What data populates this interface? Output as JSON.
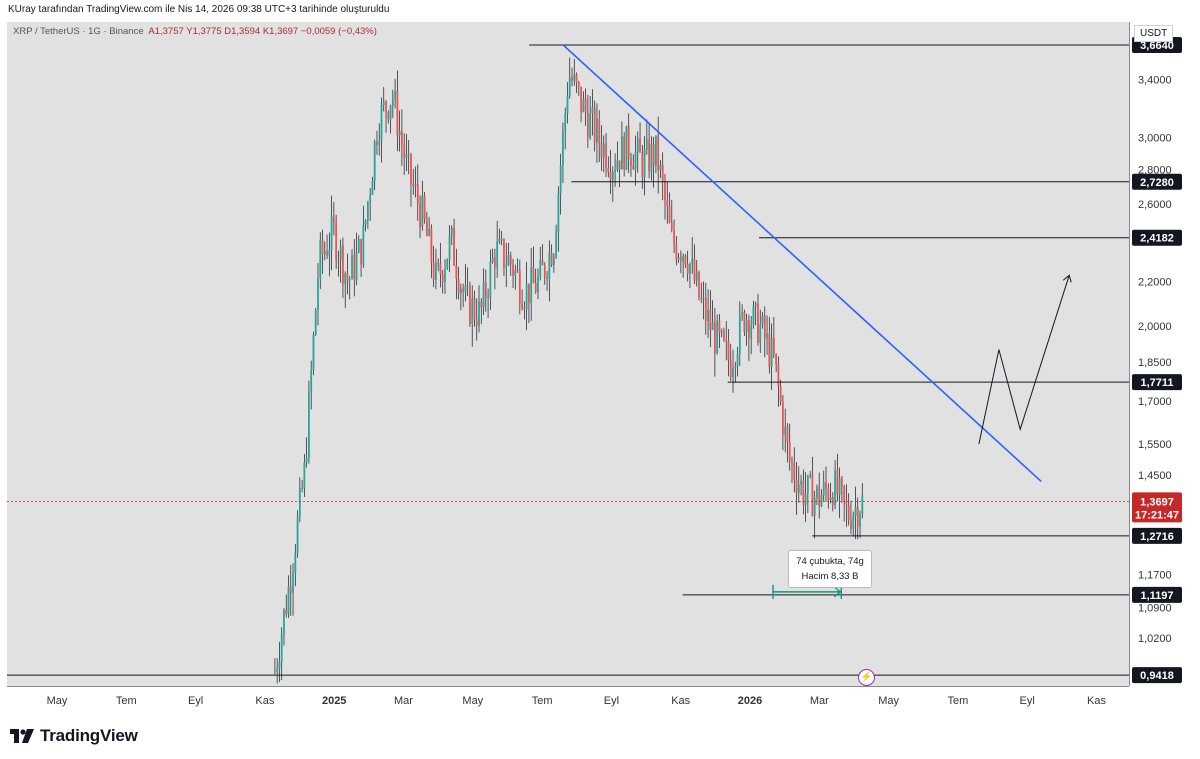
{
  "header": {
    "text": "KUray tarafından TradingView.com ile Nis 14, 2026 09:38 UTC+3 tarihinde oluşturuldu"
  },
  "symbol": {
    "name": "XRP / TetherUS · 1G · Binance",
    "ohlc": "A1,3757  Y1,3775  D1,3594  K1,3697  −0,0059 (−0,43%)"
  },
  "currency": "USDT",
  "logo": {
    "text": "TradingView"
  },
  "tooltip": {
    "line1": "74 çubukta, 74g",
    "line2": "Hacim 8,33 B"
  },
  "alert_icon": "lightning-icon",
  "colors": {
    "up": "#26a69a",
    "down": "#ef5350",
    "trendline": "#2962ff",
    "level_box": "#131722",
    "last_price": "#c62828",
    "measure": "#089981"
  },
  "chart_data": {
    "type": "candlestick",
    "y_scale": "log",
    "ylim": [
      0.92,
      3.85
    ],
    "y_ticks": [
      {
        "value": 3.4,
        "label": "3,4000"
      },
      {
        "value": 3.0,
        "label": "3,0000"
      },
      {
        "value": 2.8,
        "label": "2,8000"
      },
      {
        "value": 2.6,
        "label": "2,6000"
      },
      {
        "value": 2.2,
        "label": "2,2000"
      },
      {
        "value": 2.0,
        "label": "2,0000"
      },
      {
        "value": 1.85,
        "label": "1,8500"
      },
      {
        "value": 1.7,
        "label": "1,7000"
      },
      {
        "value": 1.55,
        "label": "1,5500"
      },
      {
        "value": 1.45,
        "label": "1,4500"
      },
      {
        "value": 1.17,
        "label": "1,1700"
      },
      {
        "value": 1.09,
        "label": "1,0900"
      },
      {
        "value": 1.02,
        "label": "1,0200"
      }
    ],
    "x_ticks": [
      {
        "label": "May",
        "bold": false
      },
      {
        "label": "Tem",
        "bold": false
      },
      {
        "label": "Eyl",
        "bold": false
      },
      {
        "label": "Kas",
        "bold": false
      },
      {
        "label": "2025",
        "bold": true
      },
      {
        "label": "Mar",
        "bold": false
      },
      {
        "label": "May",
        "bold": false
      },
      {
        "label": "Tem",
        "bold": false
      },
      {
        "label": "Eyl",
        "bold": false
      },
      {
        "label": "Kas",
        "bold": false
      },
      {
        "label": "2026",
        "bold": true
      },
      {
        "label": "Mar",
        "bold": false
      },
      {
        "label": "May",
        "bold": false
      },
      {
        "label": "Tem",
        "bold": false
      },
      {
        "label": "Eyl",
        "bold": false
      },
      {
        "label": "Kas",
        "bold": false
      }
    ],
    "levels": [
      {
        "value": 3.664,
        "label": "3,6640"
      },
      {
        "value": 2.728,
        "label": "2,7280"
      },
      {
        "value": 2.4182,
        "label": "2,4182"
      },
      {
        "value": 1.7711,
        "label": "1,7711"
      },
      {
        "value": 1.2716,
        "label": "1,2716"
      },
      {
        "value": 1.1197,
        "label": "1,1197"
      },
      {
        "value": 0.9418,
        "label": "0,9418"
      }
    ],
    "last_price": {
      "value": 1.3697,
      "label": "1,3697",
      "countdown": "17:21:47"
    },
    "price_path": [
      [
        "Kas 2024",
        0.95
      ],
      [
        "Kas 2024",
        1.15
      ],
      [
        "Kas 2024",
        1.45
      ],
      [
        "Ara 2024",
        2.3
      ],
      [
        "Ara 2024",
        2.45
      ],
      [
        "Ara 2024",
        2.2
      ],
      [
        "Oca 2025",
        2.4
      ],
      [
        "Oca 2025",
        3.1
      ],
      [
        "Oca 2025",
        3.3
      ],
      [
        "Şub 2025",
        2.8
      ],
      [
        "Şub 2025",
        2.55
      ],
      [
        "Mar 2025",
        2.2
      ],
      [
        "Mar 2025",
        2.4
      ],
      [
        "Nis 2025",
        2.1
      ],
      [
        "Nis 2025",
        2.05
      ],
      [
        "May 2025",
        2.35
      ],
      [
        "May 2025",
        2.3
      ],
      [
        "Haz 2025",
        2.15
      ],
      [
        "Haz 2025",
        2.2
      ],
      [
        "Tem 2025",
        2.4
      ],
      [
        "Tem 2025",
        3.45
      ],
      [
        "Tem 2025",
        3.2
      ],
      [
        "Ağu 2025",
        3.0
      ],
      [
        "Ağu 2025",
        2.85
      ],
      [
        "Eyl 2025",
        2.95
      ],
      [
        "Eyl 2025",
        2.85
      ],
      [
        "Eki 2025",
        2.9
      ],
      [
        "Eki 2025",
        2.4
      ],
      [
        "Kas 2025",
        2.35
      ],
      [
        "Kas 2025",
        2.1
      ],
      [
        "Ara 2025",
        1.95
      ],
      [
        "Ara 2025",
        1.85
      ],
      [
        "Oca 2026",
        2.05
      ],
      [
        "Oca 2026",
        2.0
      ],
      [
        "Oca 2026",
        1.85
      ],
      [
        "Şub 2026",
        1.5
      ],
      [
        "Şub 2026",
        1.4
      ],
      [
        "Mar 2026",
        1.38
      ],
      [
        "Mar 2026",
        1.42
      ],
      [
        "Nis 2026",
        1.33
      ],
      [
        "Nis 2026",
        1.3697
      ]
    ]
  }
}
